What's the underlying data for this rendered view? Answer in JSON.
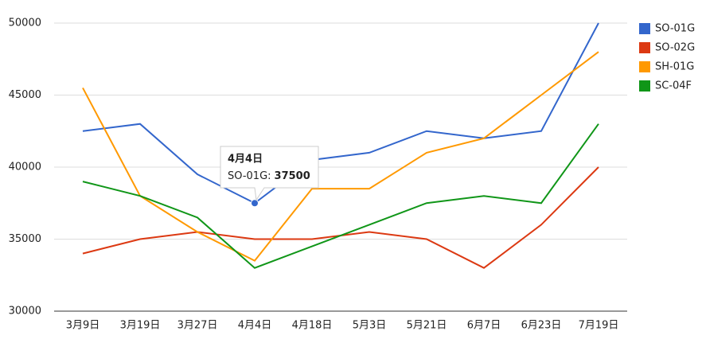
{
  "chart_data": {
    "type": "line",
    "categories": [
      "3月9日",
      "3月19日",
      "3月27日",
      "4月4日",
      "4月18日",
      "5月3日",
      "5月21日",
      "6月7日",
      "6月23日",
      "7月19日"
    ],
    "series": [
      {
        "name": "SO-01G",
        "color": "#3366cc",
        "values": [
          42500,
          43000,
          39500,
          37500,
          40500,
          41000,
          42500,
          42000,
          42500,
          50000
        ]
      },
      {
        "name": "SO-02G",
        "color": "#dc3912",
        "values": [
          34000,
          35000,
          35500,
          35000,
          35000,
          35500,
          35000,
          33000,
          36000,
          40000
        ]
      },
      {
        "name": "SH-01G",
        "color": "#ff9900",
        "values": [
          45500,
          38000,
          35500,
          33500,
          38500,
          38500,
          41000,
          42000,
          45000,
          48000
        ]
      },
      {
        "name": "SC-04F",
        "color": "#109618",
        "values": [
          39000,
          38000,
          36500,
          33000,
          34500,
          36000,
          37500,
          38000,
          37500,
          43000
        ]
      }
    ],
    "ylim": [
      30000,
      50000
    ],
    "yticks": [
      30000,
      35000,
      40000,
      45000,
      50000
    ],
    "grid": true,
    "legend": "right",
    "tooltip": {
      "series": 0,
      "index": 3,
      "label": "SO-01G:"
    }
  }
}
